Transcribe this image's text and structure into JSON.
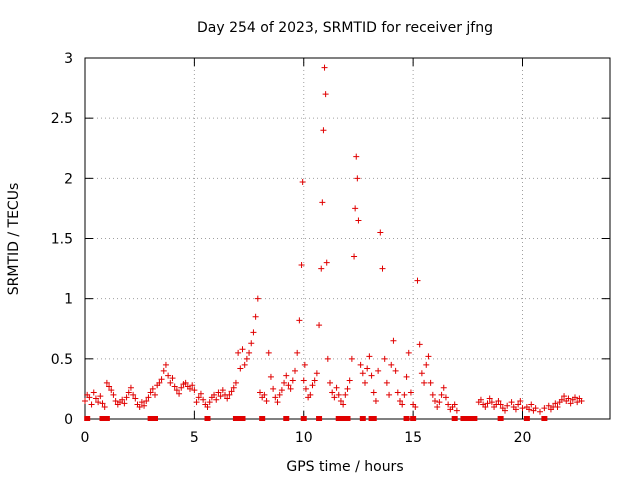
{
  "chart_data": {
    "type": "scatter",
    "title": "Day 254 of 2023, SRMTID for receiver jfng",
    "xlabel": "GPS time / hours",
    "ylabel": "SRMTID / TECUs",
    "xlim": [
      0,
      24
    ],
    "ylim": [
      0,
      3
    ],
    "xticks": [
      0,
      5,
      10,
      15,
      20
    ],
    "yticks": [
      0,
      0.5,
      1,
      1.5,
      2,
      2.5,
      3
    ],
    "xtick_labels": [
      "0",
      "5",
      "10",
      "15",
      "20"
    ],
    "ytick_labels": [
      "0",
      "0.5",
      "1",
      "1.5",
      "2",
      "2.5",
      "3"
    ],
    "grid": true,
    "marker": "plus",
    "color": "#e00000",
    "series": [
      {
        "name": "SRMTID",
        "points": [
          [
            0.0,
            0.15
          ],
          [
            0.1,
            0.2
          ],
          [
            0.2,
            0.18
          ],
          [
            0.3,
            0.12
          ],
          [
            0.4,
            0.22
          ],
          [
            0.5,
            0.17
          ],
          [
            0.6,
            0.14
          ],
          [
            0.7,
            0.19
          ],
          [
            0.8,
            0.13
          ],
          [
            0.9,
            0.1
          ],
          [
            1.0,
            0.3
          ],
          [
            1.1,
            0.27
          ],
          [
            1.2,
            0.24
          ],
          [
            1.3,
            0.2
          ],
          [
            1.4,
            0.15
          ],
          [
            1.5,
            0.12
          ],
          [
            1.6,
            0.14
          ],
          [
            1.7,
            0.16
          ],
          [
            1.8,
            0.13
          ],
          [
            1.9,
            0.18
          ],
          [
            2.0,
            0.22
          ],
          [
            2.1,
            0.26
          ],
          [
            2.2,
            0.2
          ],
          [
            2.3,
            0.17
          ],
          [
            2.4,
            0.12
          ],
          [
            2.5,
            0.1
          ],
          [
            2.6,
            0.14
          ],
          [
            2.7,
            0.11
          ],
          [
            2.8,
            0.15
          ],
          [
            2.9,
            0.18
          ],
          [
            3.0,
            0.22
          ],
          [
            3.1,
            0.25
          ],
          [
            3.2,
            0.2
          ],
          [
            3.3,
            0.28
          ],
          [
            3.4,
            0.3
          ],
          [
            3.5,
            0.33
          ],
          [
            3.6,
            0.4
          ],
          [
            3.7,
            0.45
          ],
          [
            3.8,
            0.36
          ],
          [
            3.9,
            0.3
          ],
          [
            4.0,
            0.34
          ],
          [
            4.1,
            0.27
          ],
          [
            4.2,
            0.24
          ],
          [
            4.3,
            0.21
          ],
          [
            4.4,
            0.26
          ],
          [
            4.5,
            0.29
          ],
          [
            4.6,
            0.3
          ],
          [
            4.7,
            0.27
          ],
          [
            4.8,
            0.25
          ],
          [
            4.9,
            0.28
          ],
          [
            5.0,
            0.24
          ],
          [
            5.1,
            0.14
          ],
          [
            5.2,
            0.18
          ],
          [
            5.3,
            0.21
          ],
          [
            5.4,
            0.16
          ],
          [
            5.5,
            0.12
          ],
          [
            5.6,
            0.1
          ],
          [
            5.7,
            0.14
          ],
          [
            5.8,
            0.18
          ],
          [
            5.9,
            0.2
          ],
          [
            6.0,
            0.16
          ],
          [
            6.1,
            0.22
          ],
          [
            6.2,
            0.19
          ],
          [
            6.3,
            0.24
          ],
          [
            6.4,
            0.2
          ],
          [
            6.5,
            0.17
          ],
          [
            6.6,
            0.2
          ],
          [
            6.7,
            0.23
          ],
          [
            6.8,
            0.26
          ],
          [
            6.9,
            0.3
          ],
          [
            7.0,
            0.55
          ],
          [
            7.1,
            0.42
          ],
          [
            7.2,
            0.58
          ],
          [
            7.3,
            0.45
          ],
          [
            7.4,
            0.5
          ],
          [
            7.5,
            0.55
          ],
          [
            7.6,
            0.63
          ],
          [
            7.7,
            0.72
          ],
          [
            7.8,
            0.85
          ],
          [
            7.9,
            1.0
          ],
          [
            8.0,
            0.22
          ],
          [
            8.1,
            0.18
          ],
          [
            8.2,
            0.2
          ],
          [
            8.3,
            0.15
          ],
          [
            8.4,
            0.55
          ],
          [
            8.5,
            0.35
          ],
          [
            8.6,
            0.25
          ],
          [
            8.7,
            0.18
          ],
          [
            8.8,
            0.14
          ],
          [
            8.9,
            0.2
          ],
          [
            9.0,
            0.24
          ],
          [
            9.1,
            0.3
          ],
          [
            9.2,
            0.36
          ],
          [
            9.3,
            0.28
          ],
          [
            9.4,
            0.25
          ],
          [
            9.5,
            0.32
          ],
          [
            9.6,
            0.4
          ],
          [
            9.7,
            0.55
          ],
          [
            9.8,
            0.82
          ],
          [
            9.9,
            1.28
          ],
          [
            9.95,
            1.97
          ],
          [
            10.0,
            0.32
          ],
          [
            10.05,
            0.45
          ],
          [
            10.1,
            0.25
          ],
          [
            10.2,
            0.18
          ],
          [
            10.3,
            0.2
          ],
          [
            10.4,
            0.28
          ],
          [
            10.5,
            0.32
          ],
          [
            10.6,
            0.38
          ],
          [
            10.7,
            0.78
          ],
          [
            10.8,
            1.25
          ],
          [
            10.85,
            1.8
          ],
          [
            10.9,
            2.4
          ],
          [
            10.95,
            2.92
          ],
          [
            11.0,
            2.7
          ],
          [
            11.05,
            1.3
          ],
          [
            11.1,
            0.5
          ],
          [
            11.2,
            0.3
          ],
          [
            11.3,
            0.22
          ],
          [
            11.4,
            0.18
          ],
          [
            11.5,
            0.26
          ],
          [
            11.6,
            0.2
          ],
          [
            11.7,
            0.15
          ],
          [
            11.8,
            0.12
          ],
          [
            11.9,
            0.2
          ],
          [
            12.0,
            0.25
          ],
          [
            12.1,
            0.32
          ],
          [
            12.2,
            0.5
          ],
          [
            12.3,
            1.35
          ],
          [
            12.35,
            1.75
          ],
          [
            12.4,
            2.18
          ],
          [
            12.45,
            2.0
          ],
          [
            12.5,
            1.65
          ],
          [
            12.6,
            0.45
          ],
          [
            12.7,
            0.38
          ],
          [
            12.8,
            0.3
          ],
          [
            12.9,
            0.42
          ],
          [
            13.0,
            0.52
          ],
          [
            13.1,
            0.36
          ],
          [
            13.2,
            0.22
          ],
          [
            13.3,
            0.15
          ],
          [
            13.4,
            0.4
          ],
          [
            13.5,
            1.55
          ],
          [
            13.6,
            1.25
          ],
          [
            13.7,
            0.5
          ],
          [
            13.8,
            0.3
          ],
          [
            13.9,
            0.2
          ],
          [
            14.0,
            0.45
          ],
          [
            14.1,
            0.65
          ],
          [
            14.2,
            0.4
          ],
          [
            14.3,
            0.22
          ],
          [
            14.4,
            0.15
          ],
          [
            14.5,
            0.12
          ],
          [
            14.6,
            0.2
          ],
          [
            14.7,
            0.35
          ],
          [
            14.8,
            0.55
          ],
          [
            14.9,
            0.22
          ],
          [
            15.0,
            0.12
          ],
          [
            15.1,
            0.1
          ],
          [
            15.2,
            1.15
          ],
          [
            15.3,
            0.62
          ],
          [
            15.4,
            0.38
          ],
          [
            15.5,
            0.3
          ],
          [
            15.6,
            0.45
          ],
          [
            15.7,
            0.52
          ],
          [
            15.8,
            0.3
          ],
          [
            15.9,
            0.2
          ],
          [
            16.0,
            0.15
          ],
          [
            16.1,
            0.1
          ],
          [
            16.2,
            0.14
          ],
          [
            16.3,
            0.2
          ],
          [
            16.4,
            0.26
          ],
          [
            16.5,
            0.18
          ],
          [
            16.6,
            0.12
          ],
          [
            16.7,
            0.08
          ],
          [
            16.8,
            0.1
          ],
          [
            16.9,
            0.12
          ],
          [
            17.0,
            0.07
          ],
          [
            18.0,
            0.14
          ],
          [
            18.1,
            0.16
          ],
          [
            18.2,
            0.12
          ],
          [
            18.3,
            0.1
          ],
          [
            18.4,
            0.13
          ],
          [
            18.5,
            0.17
          ],
          [
            18.6,
            0.14
          ],
          [
            18.7,
            0.1
          ],
          [
            18.8,
            0.12
          ],
          [
            18.9,
            0.15
          ],
          [
            19.0,
            0.12
          ],
          [
            19.1,
            0.09
          ],
          [
            19.2,
            0.07
          ],
          [
            19.3,
            0.11
          ],
          [
            19.5,
            0.14
          ],
          [
            19.6,
            0.1
          ],
          [
            19.7,
            0.08
          ],
          [
            19.8,
            0.12
          ],
          [
            19.9,
            0.15
          ],
          [
            20.0,
            0.09
          ],
          [
            20.2,
            0.1
          ],
          [
            20.3,
            0.08
          ],
          [
            20.4,
            0.12
          ],
          [
            20.5,
            0.07
          ],
          [
            20.6,
            0.09
          ],
          [
            20.8,
            0.06
          ],
          [
            21.0,
            0.09
          ],
          [
            21.2,
            0.11
          ],
          [
            21.3,
            0.08
          ],
          [
            21.4,
            0.1
          ],
          [
            21.5,
            0.13
          ],
          [
            21.6,
            0.1
          ],
          [
            21.7,
            0.14
          ],
          [
            21.8,
            0.16
          ],
          [
            21.9,
            0.19
          ],
          [
            22.0,
            0.15
          ],
          [
            22.1,
            0.17
          ],
          [
            22.2,
            0.13
          ],
          [
            22.3,
            0.16
          ],
          [
            22.4,
            0.18
          ],
          [
            22.5,
            0.14
          ],
          [
            22.6,
            0.17
          ],
          [
            22.7,
            0.15
          ]
        ],
        "zero_points": [
          0.1,
          0.8,
          1.0,
          3.0,
          3.2,
          5.6,
          6.9,
          7.1,
          7.2,
          8.1,
          9.2,
          10.0,
          10.7,
          11.6,
          11.8,
          12.0,
          12.7,
          13.1,
          13.2,
          14.7,
          15.0,
          16.9,
          17.3,
          17.4,
          17.5,
          17.6,
          17.7,
          17.8,
          19.0,
          20.2,
          21.0
        ]
      }
    ]
  }
}
